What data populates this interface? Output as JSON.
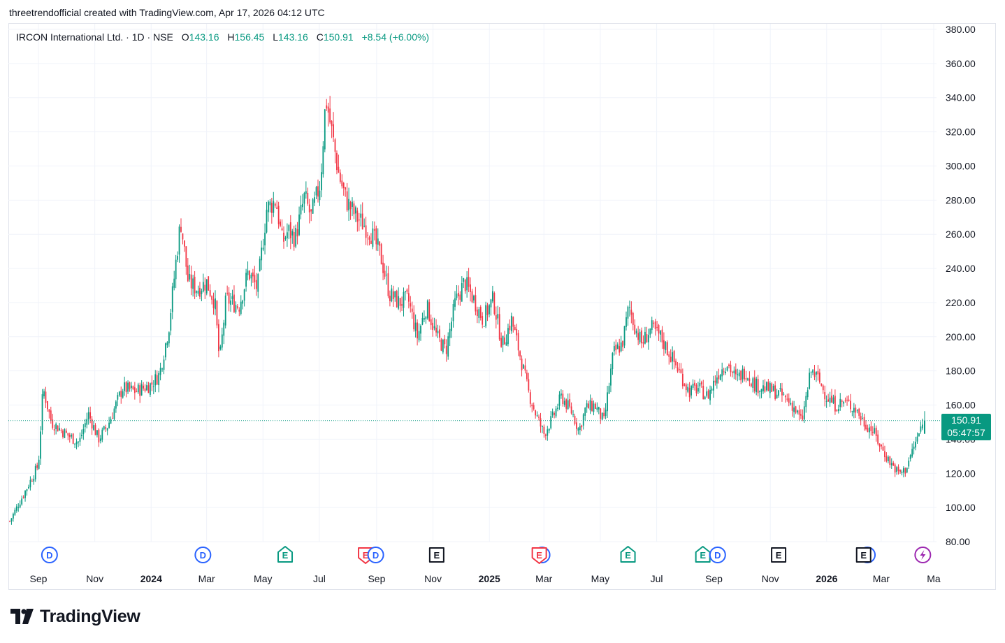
{
  "credit": {
    "author": "threetrendofficial",
    "text": "created with TradingView.com",
    "date": "Apr 17, 2026 04:12 UTC"
  },
  "legend": {
    "symbol": "IRCON International Ltd. · 1D · NSE",
    "o_label": "O",
    "o_value": "143.16",
    "h_label": "H",
    "h_value": "156.45",
    "l_label": "L",
    "l_value": "143.16",
    "c_label": "C",
    "c_value": "150.91",
    "change": "+8.54 (+6.00%)"
  },
  "last_price": {
    "price": "150.91",
    "countdown": "05:47:57"
  },
  "logo": {
    "text": "TradingView"
  },
  "colors": {
    "up": "#089981",
    "down": "#f23645",
    "grid": "#f0f3fa",
    "dividend": "#2962ff",
    "earnings_pos": "#089981",
    "earnings_neg": "#f23645",
    "earnings_neutral": "#131722",
    "split": "#9c27b0"
  },
  "chart_data": {
    "type": "candlestick",
    "title": "IRCON International Ltd. · 1D · NSE",
    "y_ticks": [
      "380.00",
      "360.00",
      "340.00",
      "320.00",
      "300.00",
      "280.00",
      "260.00",
      "240.00",
      "220.00",
      "200.00",
      "180.00",
      "160.00",
      "140.00",
      "120.00",
      "100.00",
      "80.00"
    ],
    "ylim": [
      80,
      380
    ],
    "x_ticks": [
      "Sep",
      "Nov",
      "2024",
      "Mar",
      "May",
      "Jul",
      "Sep",
      "Nov",
      "2025",
      "Mar",
      "May",
      "Jul",
      "Sep",
      "Nov",
      "2026",
      "Mar",
      "Ma"
    ],
    "bold_ticks": [
      "2024",
      "2025",
      "2026"
    ],
    "grid": true,
    "last_close": 150.91,
    "price_path": [
      [
        "2023-08-01",
        92
      ],
      [
        "2023-08-20",
        112
      ],
      [
        "2023-09-01",
        125
      ],
      [
        "2023-09-06",
        170
      ],
      [
        "2023-09-15",
        150
      ],
      [
        "2023-10-01",
        143
      ],
      [
        "2023-10-15",
        138
      ],
      [
        "2023-10-25",
        155
      ],
      [
        "2023-11-05",
        140
      ],
      [
        "2023-11-15",
        148
      ],
      [
        "2023-12-01",
        170
      ],
      [
        "2023-12-15",
        168
      ],
      [
        "2024-01-01",
        172
      ],
      [
        "2024-01-10",
        178
      ],
      [
        "2024-01-20",
        205
      ],
      [
        "2024-01-28",
        245
      ],
      [
        "2024-02-02",
        268
      ],
      [
        "2024-02-10",
        232
      ],
      [
        "2024-02-20",
        228
      ],
      [
        "2024-03-01",
        232
      ],
      [
        "2024-03-10",
        220
      ],
      [
        "2024-03-15",
        185
      ],
      [
        "2024-03-22",
        222
      ],
      [
        "2024-04-05",
        218
      ],
      [
        "2024-04-15",
        238
      ],
      [
        "2024-04-25",
        228
      ],
      [
        "2024-05-05",
        275
      ],
      [
        "2024-05-15",
        280
      ],
      [
        "2024-05-22",
        255
      ],
      [
        "2024-05-28",
        262
      ],
      [
        "2024-06-05",
        258
      ],
      [
        "2024-06-15",
        282
      ],
      [
        "2024-06-22",
        270
      ],
      [
        "2024-07-02",
        290
      ],
      [
        "2024-07-08",
        340
      ],
      [
        "2024-07-15",
        318
      ],
      [
        "2024-07-22",
        295
      ],
      [
        "2024-07-30",
        280
      ],
      [
        "2024-08-10",
        270
      ],
      [
        "2024-08-25",
        262
      ],
      [
        "2024-09-05",
        248
      ],
      [
        "2024-09-15",
        225
      ],
      [
        "2024-09-25",
        220
      ],
      [
        "2024-10-05",
        222
      ],
      [
        "2024-10-15",
        200
      ],
      [
        "2024-10-25",
        218
      ],
      [
        "2024-11-05",
        200
      ],
      [
        "2024-11-15",
        192
      ],
      [
        "2024-11-25",
        220
      ],
      [
        "2024-12-05",
        232
      ],
      [
        "2024-12-15",
        222
      ],
      [
        "2024-12-25",
        210
      ],
      [
        "2025-01-05",
        222
      ],
      [
        "2025-01-15",
        195
      ],
      [
        "2025-01-25",
        210
      ],
      [
        "2025-02-05",
        185
      ],
      [
        "2025-02-12",
        168
      ],
      [
        "2025-02-20",
        155
      ],
      [
        "2025-03-01",
        143
      ],
      [
        "2025-03-10",
        152
      ],
      [
        "2025-03-20",
        165
      ],
      [
        "2025-04-01",
        155
      ],
      [
        "2025-04-08",
        145
      ],
      [
        "2025-04-15",
        158
      ],
      [
        "2025-04-25",
        160
      ],
      [
        "2025-05-05",
        150
      ],
      [
        "2025-05-15",
        190
      ],
      [
        "2025-05-25",
        196
      ],
      [
        "2025-06-01",
        218
      ],
      [
        "2025-06-08",
        205
      ],
      [
        "2025-06-15",
        196
      ],
      [
        "2025-06-25",
        205
      ],
      [
        "2025-07-05",
        200
      ],
      [
        "2025-07-15",
        190
      ],
      [
        "2025-07-25",
        180
      ],
      [
        "2025-08-05",
        168
      ],
      [
        "2025-08-15",
        170
      ],
      [
        "2025-08-25",
        165
      ],
      [
        "2025-09-05",
        178
      ],
      [
        "2025-09-15",
        185
      ],
      [
        "2025-09-25",
        175
      ],
      [
        "2025-10-05",
        180
      ],
      [
        "2025-10-15",
        172
      ],
      [
        "2025-10-25",
        170
      ],
      [
        "2025-11-05",
        168
      ],
      [
        "2025-11-15",
        165
      ],
      [
        "2025-11-25",
        160
      ],
      [
        "2025-12-05",
        150
      ],
      [
        "2025-12-15",
        180
      ],
      [
        "2025-12-22",
        176
      ],
      [
        "2026-01-01",
        165
      ],
      [
        "2026-01-10",
        160
      ],
      [
        "2026-01-20",
        162
      ],
      [
        "2026-02-01",
        158
      ],
      [
        "2026-02-10",
        150
      ],
      [
        "2026-02-20",
        145
      ],
      [
        "2026-03-01",
        135
      ],
      [
        "2026-03-10",
        127
      ],
      [
        "2026-03-20",
        120
      ],
      [
        "2026-03-27",
        122
      ],
      [
        "2026-04-05",
        135
      ],
      [
        "2026-04-12",
        145
      ],
      [
        "2026-04-17",
        150.91
      ]
    ],
    "events": [
      {
        "kind": "D",
        "date": "2023-09-13"
      },
      {
        "kind": "D",
        "date": "2024-02-26"
      },
      {
        "kind": "E-pos",
        "date": "2024-05-25"
      },
      {
        "kind": "E-neg",
        "date": "2024-08-20"
      },
      {
        "kind": "D",
        "date": "2024-08-31"
      },
      {
        "kind": "E",
        "date": "2024-11-05"
      },
      {
        "kind": "D",
        "date": "2025-02-27"
      },
      {
        "kind": "E-neg",
        "date": "2025-02-24"
      },
      {
        "kind": "E-pos",
        "date": "2025-05-31"
      },
      {
        "kind": "E-pos",
        "date": "2025-08-20"
      },
      {
        "kind": "D",
        "date": "2025-09-05"
      },
      {
        "kind": "E",
        "date": "2025-11-10"
      },
      {
        "kind": "D",
        "date": "2026-02-14"
      },
      {
        "kind": "E",
        "date": "2026-02-10"
      },
      {
        "kind": "split",
        "date": "2026-04-15"
      }
    ]
  }
}
